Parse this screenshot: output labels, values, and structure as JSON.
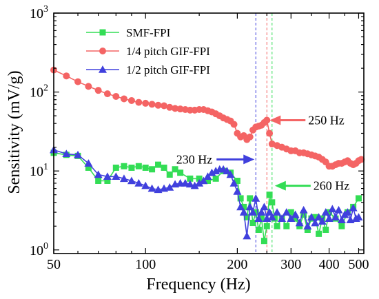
{
  "chart_data": {
    "type": "line",
    "xlabel": "Frequency (Hz)",
    "ylabel": "Sensitivity (mV/g)",
    "x_scale": "log",
    "y_scale": "log",
    "xlim": [
      50,
      520
    ],
    "ylim": [
      0.9,
      1000
    ],
    "x_ticks": [
      {
        "value": 50,
        "label": "50"
      },
      {
        "value": 100,
        "label": "100"
      },
      {
        "value": 200,
        "label": "200"
      },
      {
        "value": 300,
        "label": "300"
      },
      {
        "value": 400,
        "label": "400"
      },
      {
        "value": 500,
        "label": "500"
      }
    ],
    "y_ticks": [
      {
        "value": 1,
        "base": "10",
        "exp": "0"
      },
      {
        "value": 10,
        "base": "10",
        "exp": "1"
      },
      {
        "value": 100,
        "base": "10",
        "exp": "2"
      },
      {
        "value": 1000,
        "base": "10",
        "exp": "3"
      }
    ],
    "legend": {
      "position": "top-left"
    },
    "series": [
      {
        "name": "SMF-FPI",
        "color": "#33dd55",
        "marker": "square",
        "x": [
          50,
          55,
          60,
          65,
          70,
          75,
          80,
          85,
          90,
          95,
          100,
          105,
          110,
          115,
          120,
          125,
          130,
          140,
          150,
          160,
          170,
          180,
          190,
          200,
          205,
          210,
          215,
          220,
          225,
          230,
          235,
          240,
          245,
          250,
          255,
          260,
          265,
          270,
          280,
          290,
          300,
          310,
          320,
          330,
          340,
          350,
          360,
          370,
          380,
          390,
          400,
          420,
          440,
          460,
          480,
          500
        ],
        "y": [
          17.0,
          16.0,
          15.5,
          11.0,
          7.5,
          7.5,
          11.0,
          11.5,
          11.0,
          11.5,
          11.0,
          10.5,
          12.0,
          11.0,
          9.0,
          10.5,
          9.5,
          8.0,
          8.0,
          7.5,
          8.0,
          10.0,
          9.5,
          7.5,
          4.5,
          3.5,
          2.6,
          4.5,
          2.2,
          3.0,
          1.8,
          2.5,
          1.3,
          2.0,
          5.0,
          4.0,
          2.5,
          2.0,
          2.5,
          2.0,
          3.0,
          2.5,
          2.0,
          2.8,
          1.8,
          2.5,
          2.6,
          1.6,
          2.5,
          1.8,
          3.0,
          2.5,
          2.0,
          3.0,
          3.5,
          4.5
        ]
      },
      {
        "name": "1/4 pitch GIF-FPI",
        "color": "#f46464",
        "marker": "circle",
        "x": [
          50,
          55,
          60,
          65,
          70,
          75,
          80,
          85,
          90,
          95,
          100,
          105,
          110,
          115,
          120,
          125,
          130,
          135,
          140,
          145,
          150,
          155,
          160,
          165,
          170,
          175,
          180,
          185,
          190,
          195,
          200,
          205,
          210,
          215,
          220,
          225,
          230,
          235,
          240,
          245,
          250,
          255,
          260,
          270,
          280,
          290,
          300,
          310,
          320,
          330,
          340,
          350,
          360,
          370,
          380,
          390,
          400,
          410,
          420,
          430,
          440,
          450,
          460,
          470,
          480,
          490,
          500,
          510
        ],
        "y": [
          190,
          160,
          135,
          118,
          105,
          95,
          88,
          82,
          78,
          74,
          72,
          70,
          68,
          67,
          64,
          62,
          61,
          60,
          59,
          59,
          60,
          60,
          58,
          56,
          53,
          50,
          47,
          45,
          43,
          39,
          30,
          27,
          28,
          25,
          27,
          33,
          36,
          37,
          38,
          41,
          44,
          30,
          22,
          21,
          20,
          19,
          18,
          18,
          17,
          17,
          16.5,
          16,
          15.5,
          15,
          14,
          13,
          11.5,
          11.5,
          12,
          12.5,
          12.5,
          13,
          13.5,
          12.5,
          12,
          12.5,
          13.5,
          14
        ]
      },
      {
        "name": "1/2 pitch GIF-FPI",
        "color": "#4040dd",
        "marker": "triangle",
        "x": [
          50,
          55,
          60,
          65,
          70,
          75,
          80,
          85,
          90,
          95,
          100,
          105,
          110,
          115,
          120,
          125,
          130,
          135,
          140,
          145,
          150,
          155,
          160,
          165,
          170,
          175,
          180,
          185,
          190,
          195,
          200,
          205,
          210,
          215,
          220,
          225,
          230,
          235,
          240,
          245,
          250,
          255,
          260,
          270,
          280,
          290,
          300,
          310,
          320,
          330,
          340,
          350,
          360,
          370,
          380,
          390,
          400,
          410,
          420,
          430,
          440,
          450,
          460,
          470,
          480,
          490,
          500
        ],
        "y": [
          18.5,
          16.5,
          16.0,
          12.5,
          9.0,
          8.5,
          8.5,
          8.0,
          7.5,
          7.0,
          6.5,
          6.0,
          5.8,
          6.0,
          6.2,
          6.8,
          7.0,
          7.0,
          6.8,
          6.5,
          7.0,
          7.5,
          8.5,
          9.5,
          10.0,
          10.5,
          10.5,
          10.0,
          9.0,
          7.0,
          5.5,
          3.5,
          3.0,
          1.5,
          3.5,
          3.0,
          4.5,
          2.5,
          3.0,
          3.5,
          2.5,
          3.0,
          2.6,
          3.0,
          2.5,
          3.0,
          2.5,
          2.8,
          2.2,
          3.2,
          2.0,
          2.6,
          2.2,
          2.6,
          2.3,
          3.0,
          2.5,
          3.3,
          2.6,
          3.2,
          2.4,
          2.8,
          3.0,
          2.4,
          3.4,
          2.5,
          2.6
        ]
      }
    ],
    "reference_lines": [
      {
        "x": 230,
        "color": "#4040dd"
      },
      {
        "x": 250,
        "color": "#f46464"
      },
      {
        "x": 260,
        "color": "#33dd55"
      }
    ],
    "annotations": [
      {
        "text": "230 Hz",
        "color": "#4040dd",
        "direction": "right",
        "x": 230,
        "y": 14
      },
      {
        "text": "250 Hz",
        "color": "#f46464",
        "direction": "left",
        "x": 250,
        "y": 44
      },
      {
        "text": "260 Hz",
        "color": "#33dd55",
        "direction": "left",
        "x": 260,
        "y": 6.5
      }
    ]
  }
}
